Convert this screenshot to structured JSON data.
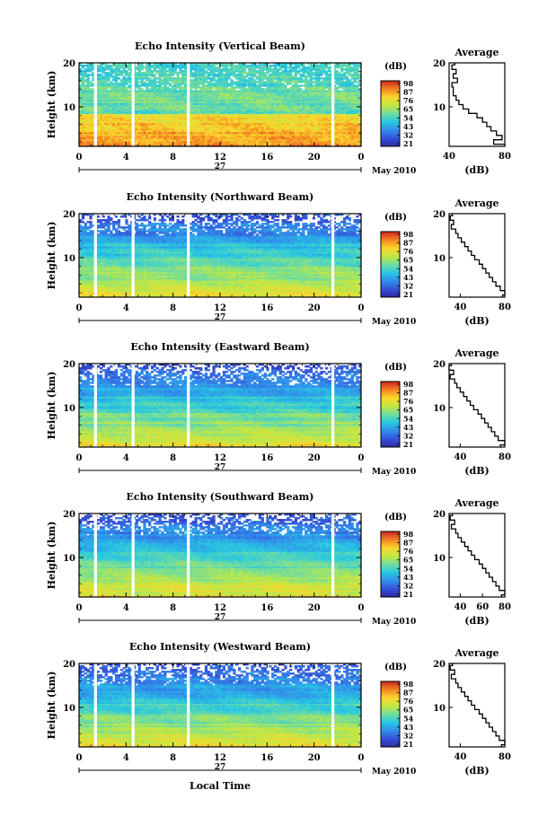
{
  "figure": {
    "xlabel": "Local Time",
    "date_label": "May 2010",
    "day_label": "27",
    "colorbar_unit": "(dB)",
    "avg_title": "Average",
    "avg_xlabel": "(dB)"
  },
  "chart_data": [
    {
      "type": "heatmap",
      "title": "Echo Intensity (Vertical Beam)",
      "xlabel": "",
      "ylabel": "Height (km)",
      "xlim": [
        0,
        24
      ],
      "ylim": [
        1,
        20
      ],
      "xticks": [
        "0",
        "4",
        "8",
        "12",
        "16",
        "20",
        "0"
      ],
      "yticks": [
        "10",
        "20"
      ],
      "colorbar": {
        "min": 21,
        "max": 98,
        "ticks": [
          "98",
          "87",
          "76",
          "65",
          "54",
          "43",
          "32",
          "21"
        ]
      },
      "data_gaps_hour": [
        1.4,
        4.6,
        9.3,
        21.6
      ],
      "profile": {
        "surface_db": 86,
        "midlevel_db": 60,
        "top_db": 50,
        "sharp_drop_km": 8.5,
        "noise": "high"
      },
      "average": {
        "xlim": [
          40,
          80
        ],
        "xticks": [
          "40",
          "80"
        ],
        "ylim": [
          1,
          20
        ],
        "yticks": [
          "10",
          "20"
        ],
        "height_km": [
          1,
          2,
          3,
          4,
          5,
          6,
          7,
          8,
          9,
          10,
          11,
          12,
          13,
          14,
          15,
          16,
          17,
          18,
          19,
          20
        ],
        "db": [
          80,
          72,
          78,
          74,
          70,
          67,
          64,
          60,
          54,
          50,
          47,
          45,
          43,
          43,
          42,
          46,
          43,
          45,
          42,
          44
        ]
      }
    },
    {
      "type": "heatmap",
      "title": "Echo Intensity (Northward Beam)",
      "xlabel": "",
      "ylabel": "Height (km)",
      "xlim": [
        0,
        24
      ],
      "ylim": [
        1,
        20
      ],
      "xticks": [
        "0",
        "4",
        "8",
        "12",
        "16",
        "20",
        "0"
      ],
      "yticks": [
        "10",
        "20"
      ],
      "colorbar": {
        "min": 21,
        "max": 98,
        "ticks": [
          "98",
          "87",
          "76",
          "65",
          "54",
          "43",
          "32",
          "21"
        ]
      },
      "data_gaps_hour": [
        1.4,
        4.6,
        9.3,
        21.6
      ],
      "profile": {
        "surface_db": 76,
        "midlevel_db": 50,
        "top_db": 30,
        "sharp_drop_km": 0,
        "noise": "medium"
      },
      "average": {
        "xlim": [
          30,
          80
        ],
        "xticks": [
          "40",
          "80"
        ],
        "ylim": [
          1,
          20
        ],
        "yticks": [
          "10",
          "20"
        ],
        "height_km": [
          1,
          2,
          3,
          4,
          5,
          6,
          7,
          8,
          9,
          10,
          11,
          12,
          13,
          14,
          15,
          16,
          17,
          18,
          19,
          20
        ],
        "db": [
          78,
          80,
          76,
          72,
          69,
          66,
          63,
          60,
          57,
          53,
          50,
          47,
          44,
          41,
          38,
          36,
          32,
          34,
          31,
          33
        ]
      }
    },
    {
      "type": "heatmap",
      "title": "Echo Intensity (Eastward Beam)",
      "xlabel": "",
      "ylabel": "Height (km)",
      "xlim": [
        0,
        24
      ],
      "ylim": [
        1,
        20
      ],
      "xticks": [
        "0",
        "4",
        "8",
        "12",
        "16",
        "20",
        "0"
      ],
      "yticks": [
        "10",
        "20"
      ],
      "colorbar": {
        "min": 21,
        "max": 98,
        "ticks": [
          "98",
          "87",
          "76",
          "65",
          "54",
          "43",
          "32",
          "21"
        ]
      },
      "data_gaps_hour": [
        1.4,
        4.6,
        9.3,
        21.6
      ],
      "profile": {
        "surface_db": 76,
        "midlevel_db": 50,
        "top_db": 30,
        "sharp_drop_km": 0,
        "noise": "medium"
      },
      "average": {
        "xlim": [
          30,
          80
        ],
        "xticks": [
          "40",
          "80"
        ],
        "ylim": [
          1,
          20
        ],
        "yticks": [
          "10",
          "20"
        ],
        "height_km": [
          1,
          2,
          3,
          4,
          5,
          6,
          7,
          8,
          9,
          10,
          11,
          12,
          13,
          14,
          15,
          16,
          17,
          18,
          19,
          20
        ],
        "db": [
          76,
          80,
          74,
          71,
          68,
          65,
          62,
          59,
          56,
          52,
          49,
          46,
          43,
          40,
          37,
          35,
          31,
          34,
          30,
          32
        ]
      }
    },
    {
      "type": "heatmap",
      "title": "Echo Intensity (Southward Beam)",
      "xlabel": "",
      "ylabel": "Height (km)",
      "xlim": [
        0,
        24
      ],
      "ylim": [
        1,
        20
      ],
      "xticks": [
        "0",
        "4",
        "8",
        "12",
        "16",
        "20",
        "0"
      ],
      "yticks": [
        "10",
        "20"
      ],
      "colorbar": {
        "min": 21,
        "max": 98,
        "ticks": [
          "98",
          "87",
          "76",
          "65",
          "54",
          "43",
          "32",
          "21"
        ]
      },
      "data_gaps_hour": [
        1.4,
        4.6,
        9.3,
        21.6
      ],
      "profile": {
        "surface_db": 76,
        "midlevel_db": 50,
        "top_db": 30,
        "sharp_drop_km": 0,
        "noise": "medium"
      },
      "average": {
        "xlim": [
          30,
          80
        ],
        "xticks": [
          "40",
          "60",
          "80"
        ],
        "ylim": [
          1,
          20
        ],
        "yticks": [
          "10",
          "20"
        ],
        "height_km": [
          1,
          2,
          3,
          4,
          5,
          6,
          7,
          8,
          9,
          10,
          11,
          12,
          13,
          14,
          15,
          16,
          17,
          18,
          19,
          20
        ],
        "db": [
          77,
          80,
          75,
          72,
          69,
          66,
          63,
          60,
          57,
          53,
          50,
          47,
          44,
          41,
          38,
          36,
          32,
          35,
          31,
          33
        ]
      }
    },
    {
      "type": "heatmap",
      "title": "Echo Intensity (Westward Beam)",
      "xlabel": "",
      "ylabel": "Height (km)",
      "xlim": [
        0,
        24
      ],
      "ylim": [
        1,
        20
      ],
      "xticks": [
        "0",
        "4",
        "8",
        "12",
        "16",
        "20",
        "0"
      ],
      "yticks": [
        "10",
        "20"
      ],
      "colorbar": {
        "min": 21,
        "max": 98,
        "ticks": [
          "98",
          "87",
          "76",
          "65",
          "54",
          "43",
          "32",
          "21"
        ]
      },
      "data_gaps_hour": [
        1.4,
        4.6,
        9.3,
        21.6
      ],
      "profile": {
        "surface_db": 76,
        "midlevel_db": 50,
        "top_db": 30,
        "sharp_drop_km": 0,
        "noise": "medium"
      },
      "average": {
        "xlim": [
          30,
          80
        ],
        "xticks": [
          "40",
          "80"
        ],
        "ylim": [
          1,
          20
        ],
        "yticks": [
          "10",
          "20"
        ],
        "height_km": [
          1,
          2,
          3,
          4,
          5,
          6,
          7,
          8,
          9,
          10,
          11,
          12,
          13,
          14,
          15,
          16,
          17,
          18,
          19,
          20
        ],
        "db": [
          77,
          80,
          75,
          72,
          69,
          66,
          63,
          60,
          57,
          53,
          50,
          47,
          44,
          41,
          38,
          36,
          32,
          35,
          31,
          33
        ]
      }
    }
  ]
}
